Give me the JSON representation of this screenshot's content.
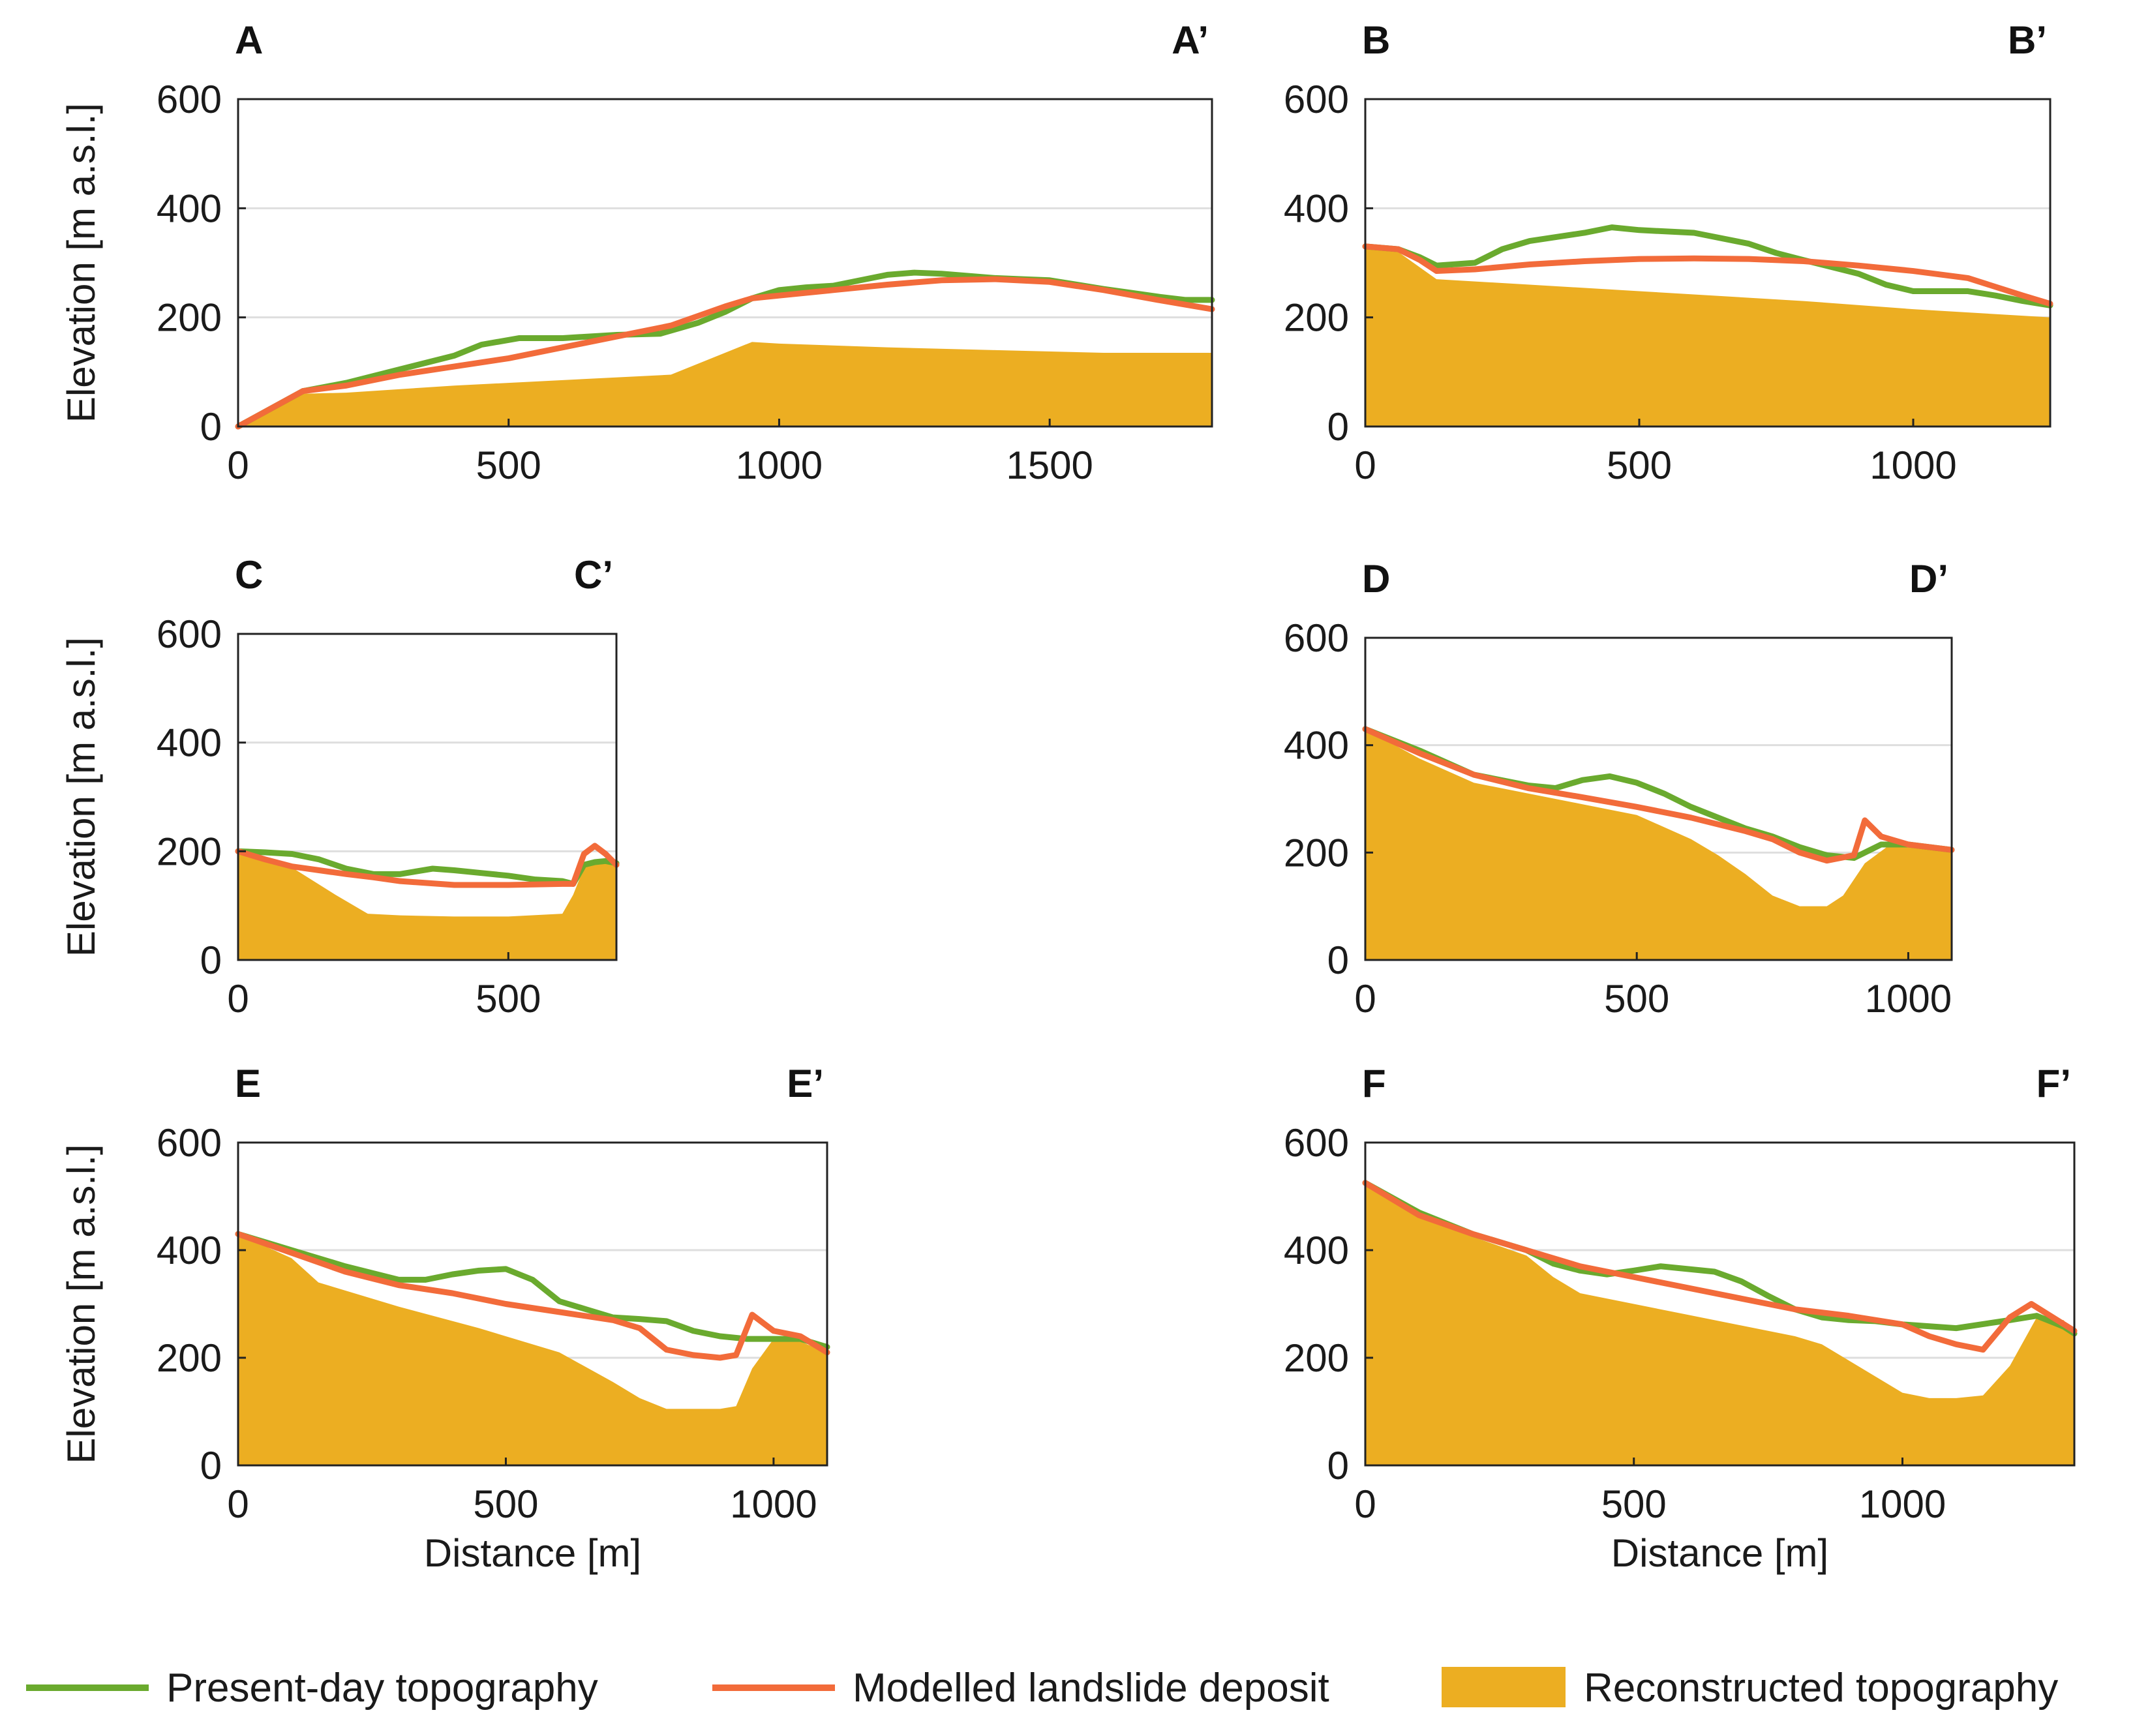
{
  "colors": {
    "present": "#6aaa2e",
    "modelled": "#f26b3a",
    "reconstructed": "#ecae22",
    "grid": "#dedede",
    "axis": "#222222"
  },
  "legend": {
    "present": "Present-day topography",
    "modelled": "Modelled landslide deposit",
    "reconstructed": "Reconstructed topography"
  },
  "chart_data": [
    {
      "id": "A",
      "type": "line",
      "start_label": "A",
      "end_label": "A’",
      "ylabel": "Elevation [m a.s.l.]",
      "xlabel": "",
      "xlim": [
        0,
        1800
      ],
      "ylim": [
        0,
        600
      ],
      "xticks": [
        0,
        500,
        1000,
        1500
      ],
      "yticks": [
        0,
        200,
        400,
        600
      ],
      "grid": "y",
      "series": [
        {
          "name": "Present-day topography",
          "x": [
            0,
            120,
            200,
            300,
            400,
            450,
            520,
            600,
            700,
            780,
            850,
            900,
            950,
            1000,
            1050,
            1100,
            1150,
            1200,
            1250,
            1300,
            1350,
            1400,
            1450,
            1500,
            1550,
            1600,
            1650,
            1700,
            1750,
            1800
          ],
          "y": [
            0,
            65,
            80,
            105,
            130,
            150,
            162,
            162,
            168,
            170,
            190,
            210,
            235,
            250,
            255,
            258,
            268,
            278,
            282,
            280,
            276,
            272,
            270,
            268,
            260,
            252,
            245,
            238,
            232,
            232
          ]
        },
        {
          "name": "Modelled landslide deposit",
          "x": [
            0,
            120,
            200,
            300,
            400,
            500,
            600,
            700,
            800,
            900,
            950,
            1000,
            1100,
            1200,
            1300,
            1400,
            1500,
            1600,
            1700,
            1800
          ],
          "y": [
            0,
            65,
            75,
            95,
            110,
            125,
            145,
            165,
            185,
            220,
            235,
            240,
            250,
            260,
            268,
            270,
            265,
            250,
            232,
            215
          ]
        },
        {
          "name": "Reconstructed topography",
          "area": true,
          "x": [
            0,
            120,
            200,
            400,
            600,
            800,
            950,
            1000,
            1200,
            1400,
            1600,
            1800
          ],
          "y": [
            0,
            60,
            62,
            75,
            85,
            95,
            155,
            152,
            145,
            140,
            135,
            135
          ]
        }
      ]
    },
    {
      "id": "B",
      "type": "line",
      "start_label": "B",
      "end_label": "B’",
      "ylabel": "",
      "xlabel": "",
      "xlim": [
        0,
        1250
      ],
      "ylim": [
        0,
        600
      ],
      "xticks": [
        0,
        500,
        1000
      ],
      "yticks": [
        0,
        200,
        400,
        600
      ],
      "grid": "y",
      "series": [
        {
          "name": "Present-day topography",
          "x": [
            0,
            60,
            100,
            130,
            200,
            250,
            300,
            400,
            450,
            500,
            600,
            700,
            750,
            800,
            900,
            950,
            1000,
            1100,
            1150,
            1200,
            1250
          ],
          "y": [
            330,
            325,
            310,
            295,
            300,
            325,
            340,
            355,
            365,
            360,
            355,
            335,
            318,
            305,
            280,
            260,
            248,
            248,
            240,
            230,
            222
          ]
        },
        {
          "name": "Modelled landslide deposit",
          "x": [
            0,
            60,
            100,
            130,
            200,
            300,
            400,
            500,
            600,
            700,
            800,
            900,
            1000,
            1100,
            1200,
            1250
          ],
          "y": [
            330,
            325,
            305,
            285,
            288,
            297,
            303,
            307,
            308,
            307,
            303,
            295,
            285,
            272,
            240,
            225
          ]
        },
        {
          "name": "Reconstructed topography",
          "area": true,
          "x": [
            0,
            60,
            130,
            300,
            500,
            800,
            1000,
            1250
          ],
          "y": [
            330,
            320,
            270,
            260,
            248,
            230,
            215,
            200
          ]
        }
      ]
    },
    {
      "id": "C",
      "type": "line",
      "start_label": "C",
      "end_label": "C’",
      "ylabel": "Elevation [m a.s.l.]",
      "xlabel": "",
      "xlim": [
        0,
        700
      ],
      "ylim": [
        0,
        600
      ],
      "xticks": [
        0,
        500
      ],
      "yticks": [
        0,
        200,
        400,
        600
      ],
      "grid": "y",
      "series": [
        {
          "name": "Present-day topography",
          "x": [
            0,
            50,
            100,
            150,
            200,
            250,
            300,
            360,
            400,
            450,
            500,
            550,
            600,
            620,
            640,
            660,
            680,
            700
          ],
          "y": [
            200,
            198,
            195,
            185,
            168,
            158,
            158,
            168,
            165,
            160,
            155,
            148,
            145,
            140,
            175,
            180,
            182,
            178
          ]
        },
        {
          "name": "Modelled landslide deposit",
          "x": [
            0,
            50,
            100,
            150,
            200,
            250,
            300,
            400,
            500,
            600,
            620,
            640,
            660,
            680,
            700
          ],
          "y": [
            200,
            185,
            172,
            165,
            158,
            152,
            145,
            138,
            138,
            140,
            140,
            195,
            210,
            195,
            175
          ]
        },
        {
          "name": "Reconstructed topography",
          "area": true,
          "x": [
            0,
            100,
            180,
            240,
            300,
            400,
            500,
            600,
            620,
            640,
            660,
            700
          ],
          "y": [
            200,
            170,
            120,
            85,
            82,
            80,
            80,
            85,
            120,
            170,
            185,
            178
          ]
        }
      ]
    },
    {
      "id": "D",
      "type": "line",
      "start_label": "D",
      "end_label": "D’",
      "ylabel": "",
      "xlabel": "",
      "xlim": [
        0,
        1080
      ],
      "ylim": [
        0,
        600
      ],
      "xticks": [
        0,
        500,
        1000
      ],
      "yticks": [
        0,
        200,
        400,
        600
      ],
      "grid": "y",
      "series": [
        {
          "name": "Present-day topography",
          "x": [
            0,
            100,
            200,
            300,
            350,
            400,
            450,
            500,
            550,
            600,
            650,
            700,
            750,
            800,
            850,
            900,
            950,
            1000,
            1080
          ],
          "y": [
            430,
            390,
            345,
            325,
            320,
            335,
            342,
            330,
            310,
            285,
            265,
            245,
            230,
            210,
            195,
            190,
            215,
            215,
            205
          ]
        },
        {
          "name": "Modelled landslide deposit",
          "x": [
            0,
            100,
            200,
            300,
            400,
            500,
            600,
            700,
            750,
            800,
            850,
            900,
            920,
            950,
            1000,
            1080
          ],
          "y": [
            430,
            385,
            345,
            320,
            303,
            285,
            265,
            240,
            225,
            200,
            185,
            195,
            260,
            230,
            215,
            205
          ]
        },
        {
          "name": "Reconstructed topography",
          "area": true,
          "x": [
            0,
            100,
            200,
            300,
            400,
            500,
            600,
            650,
            700,
            750,
            800,
            850,
            880,
            920,
            960,
            1000,
            1080
          ],
          "y": [
            430,
            375,
            330,
            310,
            290,
            270,
            225,
            195,
            160,
            120,
            100,
            100,
            120,
            180,
            210,
            215,
            205
          ]
        }
      ]
    },
    {
      "id": "E",
      "type": "line",
      "start_label": "E",
      "end_label": "E’",
      "ylabel": "Elevation [m a.s.l.]",
      "xlabel": "Distance [m]",
      "xlim": [
        0,
        1100
      ],
      "ylim": [
        0,
        600
      ],
      "xticks": [
        0,
        500,
        1000
      ],
      "yticks": [
        0,
        200,
        400,
        600
      ],
      "grid": "y",
      "series": [
        {
          "name": "Present-day topography",
          "x": [
            0,
            100,
            200,
            300,
            350,
            400,
            450,
            500,
            550,
            600,
            650,
            700,
            750,
            800,
            850,
            900,
            950,
            1000,
            1050,
            1100
          ],
          "y": [
            430,
            400,
            370,
            345,
            345,
            355,
            362,
            365,
            345,
            305,
            290,
            275,
            272,
            268,
            250,
            240,
            235,
            235,
            235,
            220
          ]
        },
        {
          "name": "Modelled landslide deposit",
          "x": [
            0,
            100,
            200,
            300,
            400,
            500,
            600,
            700,
            750,
            800,
            850,
            900,
            930,
            960,
            1000,
            1050,
            1100
          ],
          "y": [
            430,
            395,
            360,
            335,
            320,
            300,
            285,
            270,
            255,
            215,
            205,
            200,
            205,
            280,
            250,
            240,
            210
          ]
        },
        {
          "name": "Reconstructed topography",
          "area": true,
          "x": [
            0,
            100,
            150,
            300,
            450,
            600,
            700,
            750,
            800,
            850,
            900,
            930,
            960,
            1000,
            1050,
            1100
          ],
          "y": [
            430,
            385,
            340,
            295,
            255,
            210,
            155,
            125,
            105,
            105,
            105,
            110,
            180,
            235,
            230,
            210
          ]
        }
      ]
    },
    {
      "id": "F",
      "type": "line",
      "start_label": "F",
      "end_label": "F’",
      "ylabel": "",
      "xlabel": "Distance [m]",
      "xlim": [
        0,
        1320
      ],
      "ylim": [
        0,
        600
      ],
      "xticks": [
        0,
        500,
        1000
      ],
      "yticks": [
        0,
        200,
        400,
        600
      ],
      "grid": "y",
      "series": [
        {
          "name": "Present-day topography",
          "x": [
            0,
            100,
            200,
            300,
            350,
            400,
            450,
            500,
            550,
            600,
            650,
            700,
            750,
            800,
            850,
            900,
            950,
            1000,
            1100,
            1200,
            1250,
            1300,
            1320
          ],
          "y": [
            525,
            470,
            430,
            400,
            375,
            362,
            355,
            362,
            370,
            365,
            360,
            342,
            315,
            290,
            275,
            270,
            268,
            262,
            255,
            270,
            278,
            258,
            245
          ]
        },
        {
          "name": "Modelled landslide deposit",
          "x": [
            0,
            100,
            200,
            300,
            400,
            500,
            600,
            700,
            800,
            900,
            1000,
            1050,
            1100,
            1150,
            1200,
            1240,
            1280,
            1320
          ],
          "y": [
            525,
            465,
            430,
            400,
            370,
            350,
            330,
            310,
            290,
            278,
            262,
            240,
            225,
            215,
            275,
            300,
            275,
            250
          ]
        },
        {
          "name": "Reconstructed topography",
          "area": true,
          "x": [
            0,
            100,
            200,
            300,
            350,
            400,
            500,
            600,
            700,
            800,
            850,
            900,
            950,
            1000,
            1050,
            1100,
            1150,
            1200,
            1250,
            1300,
            1320
          ],
          "y": [
            525,
            465,
            425,
            390,
            350,
            320,
            300,
            280,
            260,
            240,
            225,
            195,
            165,
            135,
            125,
            125,
            130,
            185,
            275,
            270,
            245
          ]
        }
      ]
    }
  ]
}
